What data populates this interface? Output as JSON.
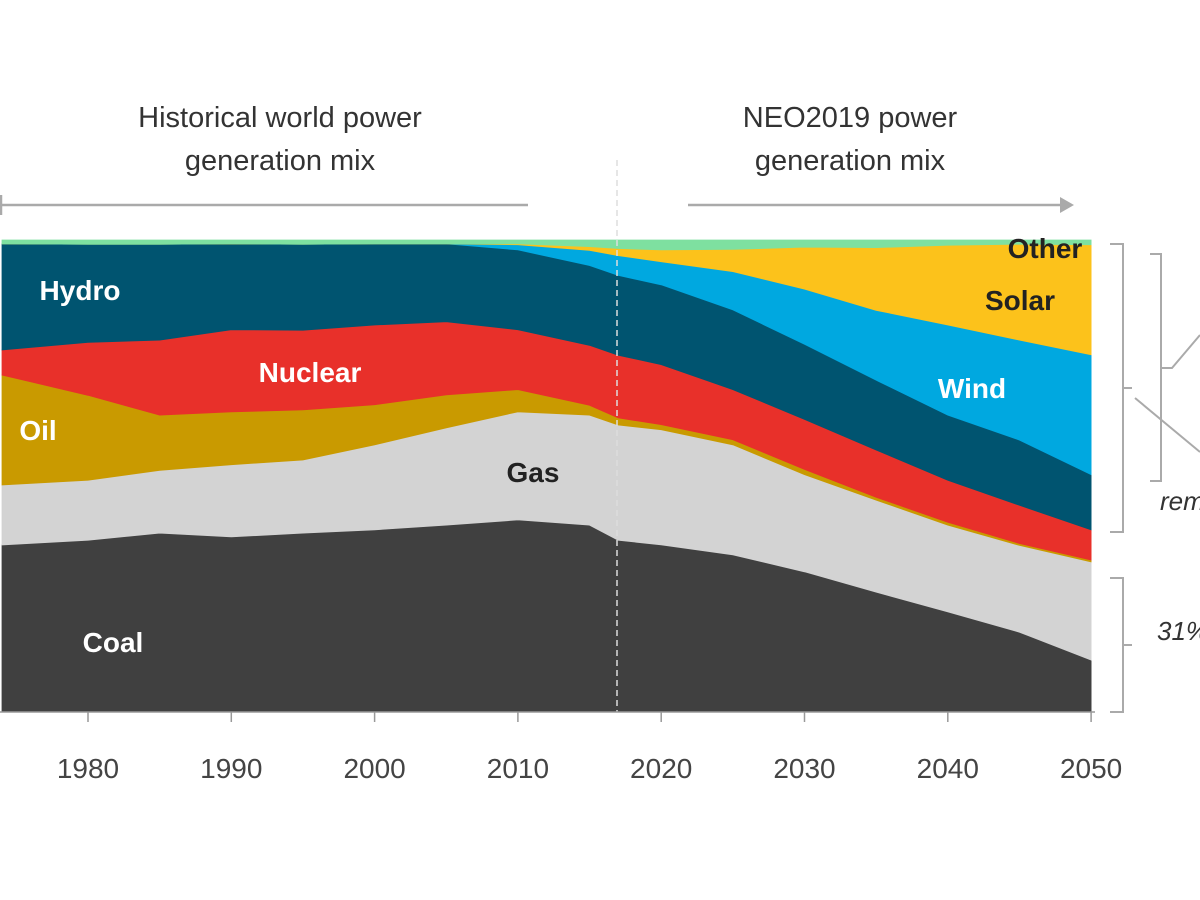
{
  "headers": {
    "historical": [
      "Historical world power",
      "generation mix"
    ],
    "forecast": [
      "NEO2019 power",
      "generation mix"
    ]
  },
  "annotations": {
    "renewables_note": "rem",
    "fossil_note": "31%"
  },
  "chart_data": {
    "type": "area",
    "stacked": true,
    "normalized": true,
    "xlim": [
      1974,
      2050
    ],
    "ylim": [
      0,
      100
    ],
    "forecast_divider_year": 2017,
    "x_ticks": [
      "1980",
      "1990",
      "2000",
      "2010",
      "2020",
      "2030",
      "2040",
      "2050"
    ],
    "x": [
      1974,
      1980,
      1985,
      1990,
      1995,
      2000,
      2005,
      2010,
      2015,
      2017,
      2020,
      2025,
      2030,
      2035,
      2040,
      2045,
      2050
    ],
    "series": [
      {
        "name": "Coal",
        "color": "#404040",
        "label_color": "#ffffff",
        "values": [
          35.4,
          36.4,
          37.9,
          37.1,
          37.9,
          38.6,
          39.6,
          40.7,
          39.6,
          36.4,
          35.4,
          33.3,
          29.7,
          25.4,
          21.2,
          16.9,
          11.0
        ]
      },
      {
        "name": "Gas",
        "color": "#d3d3d3",
        "label_color": "#222222",
        "values": [
          12.7,
          12.7,
          13.3,
          15.3,
          15.5,
          18.0,
          20.6,
          22.9,
          23.3,
          24.4,
          24.4,
          23.3,
          20.6,
          19.5,
          18.4,
          18.4,
          20.8
        ]
      },
      {
        "name": "Oil",
        "color": "#c99a00",
        "label_color": "#ffffff",
        "values": [
          23.3,
          18.0,
          11.7,
          11.2,
          10.6,
          8.5,
          7.0,
          4.7,
          2.1,
          1.5,
          1.1,
          1.1,
          1.1,
          0.6,
          0.6,
          0.4,
          0.4
        ]
      },
      {
        "name": "Nuclear",
        "color": "#e8302a",
        "label_color": "#ffffff",
        "values": [
          5.3,
          11.2,
          15.9,
          17.4,
          16.9,
          16.9,
          15.5,
          12.7,
          12.7,
          13.3,
          12.7,
          10.6,
          10.6,
          10.0,
          8.9,
          8.1,
          6.4
        ]
      },
      {
        "name": "Hydro",
        "color": "#005470",
        "label_color": "#ffffff",
        "values": [
          22.5,
          20.8,
          20.3,
          18.2,
          18.2,
          17.2,
          16.5,
          16.9,
          16.9,
          16.9,
          16.9,
          16.9,
          15.9,
          14.8,
          13.8,
          13.8,
          11.7
        ]
      },
      {
        "name": "Wind",
        "color": "#00a8e0",
        "label_color": "#ffffff",
        "values": [
          0,
          0,
          0,
          0,
          0,
          0,
          0,
          1.1,
          3.2,
          4.2,
          4.9,
          8.1,
          11.7,
          14.8,
          19.1,
          21.2,
          25.4
        ]
      },
      {
        "name": "Solar",
        "color": "#fcc21b",
        "label_color": "#222222",
        "values": [
          0,
          0,
          0,
          0,
          0,
          0,
          0,
          0.2,
          0.8,
          1.5,
          2.5,
          4.7,
          8.9,
          13.3,
          16.9,
          20.3,
          23.3
        ]
      },
      {
        "name": "Other",
        "color": "#7ee0a0",
        "label_color": "#222222",
        "values": [
          0.8,
          0.9,
          0.9,
          0.8,
          0.9,
          0.8,
          0.8,
          0.8,
          1.4,
          1.8,
          2.1,
          2.0,
          1.5,
          1.6,
          1.1,
          0.9,
          1.0
        ]
      }
    ]
  }
}
